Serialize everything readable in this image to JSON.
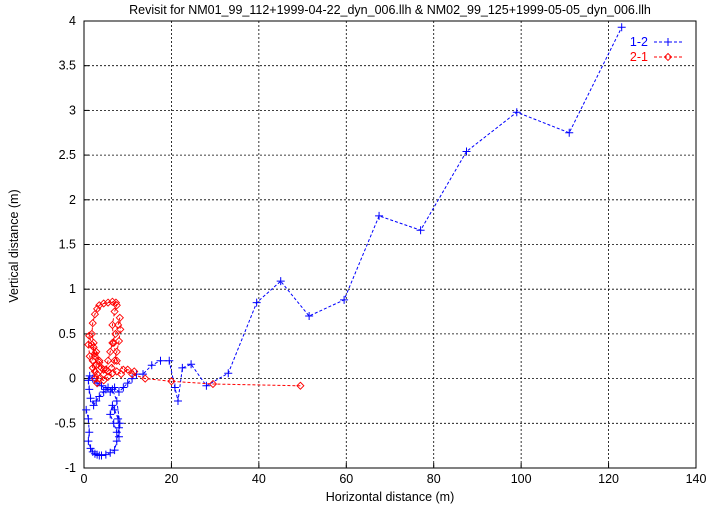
{
  "chart_data": {
    "type": "line",
    "title": "Revisit for NM01_99_112+1999-04-22_dyn_006.llh & NM02_99_125+1999-05-05_dyn_006.llh",
    "xlabel": "Horizontal distance (m)",
    "ylabel": "Vertical distance (m)",
    "xlim": [
      0,
      140
    ],
    "ylim": [
      -1,
      4
    ],
    "x_ticks": [
      0,
      20,
      40,
      60,
      80,
      100,
      120,
      140
    ],
    "x_tick_labels": [
      "0",
      "20",
      "40",
      "60",
      "80",
      "100",
      "120",
      "140"
    ],
    "y_ticks": [
      -1,
      -0.5,
      0,
      0.5,
      1,
      1.5,
      2,
      2.5,
      3,
      3.5,
      4
    ],
    "y_tick_labels": [
      "-1",
      "-0.5",
      "0",
      "0.5",
      "1",
      "1.5",
      "2",
      "2.5",
      "3",
      "3.5",
      "4"
    ],
    "grid": true,
    "legend_position": "top-right",
    "series": [
      {
        "name": "1-2",
        "color": "#0000ff",
        "marker": "plus",
        "x": [
          0.5,
          1.0,
          1.2,
          1.0,
          1.5,
          2.0,
          2.5,
          3.0,
          3.5,
          4.0,
          5.0,
          6.0,
          7.0,
          7.5,
          8.0,
          7.8,
          7.0,
          6.5,
          6.0,
          6.8,
          7.5,
          8.0,
          8.2,
          7.5,
          6.5,
          5.5,
          4.5,
          3.5,
          2.8,
          2.2,
          1.5,
          1.2,
          1.0,
          1.3,
          2.0,
          3.0,
          4.0,
          5.0,
          6.0,
          7.0,
          8.0,
          9.0,
          10.0,
          11.0,
          12.0,
          13.5,
          15.5,
          17.5,
          19.5,
          20.8,
          21.5,
          22.5,
          24.5,
          28.0,
          33.0,
          39.5,
          45.0,
          51.5,
          59.5,
          67.5,
          77.0,
          87.5,
          99.0,
          111.0,
          123.0
        ],
        "y": [
          -0.35,
          -0.45,
          -0.6,
          -0.7,
          -0.78,
          -0.82,
          -0.84,
          -0.85,
          -0.86,
          -0.86,
          -0.85,
          -0.83,
          -0.8,
          -0.7,
          -0.55,
          -0.45,
          -0.35,
          -0.3,
          -0.4,
          -0.5,
          -0.6,
          -0.65,
          -0.5,
          -0.25,
          -0.12,
          -0.1,
          -0.15,
          -0.2,
          -0.25,
          -0.3,
          -0.22,
          -0.12,
          -0.02,
          0.03,
          0.0,
          -0.05,
          -0.08,
          -0.12,
          -0.15,
          -0.1,
          -0.15,
          -0.1,
          -0.05,
          0.0,
          0.05,
          0.05,
          0.15,
          0.2,
          0.2,
          -0.1,
          -0.25,
          0.12,
          0.16,
          -0.08,
          0.06,
          0.85,
          1.09,
          0.7,
          0.88,
          1.82,
          1.66,
          2.54,
          2.98,
          2.75,
          3.93
        ]
      },
      {
        "name": "2-1",
        "color": "#ff0000",
        "marker": "diamond",
        "x": [
          49.5,
          29.5,
          20.0,
          14.0,
          11.0,
          9.0,
          7.5,
          6.8,
          6.5,
          7.0,
          7.5,
          7.3,
          6.5,
          5.5,
          4.5,
          3.5,
          3.0,
          2.5,
          2.0,
          1.8,
          2.2,
          2.8,
          3.5,
          4.0,
          4.5,
          5.0,
          5.5,
          6.0,
          6.5,
          7.2,
          7.8,
          8.2,
          8.3,
          8.0,
          7.5,
          7.0,
          6.3,
          5.5,
          4.5,
          3.5,
          2.5,
          1.8,
          1.2,
          1.0,
          1.3,
          2.0,
          2.5,
          3.0,
          3.0,
          2.8,
          2.5,
          2.2,
          2.0,
          2.5,
          3.5,
          4.5,
          5.5,
          6.5,
          7.5,
          8.5,
          10.0,
          11.5
        ],
        "y": [
          -0.08,
          -0.06,
          -0.03,
          0.0,
          0.05,
          0.1,
          0.2,
          0.4,
          0.6,
          0.75,
          0.82,
          0.85,
          0.86,
          0.85,
          0.84,
          0.82,
          0.78,
          0.72,
          0.62,
          0.5,
          0.4,
          0.3,
          0.2,
          0.12,
          0.05,
          0.1,
          0.2,
          0.3,
          0.4,
          0.5,
          0.6,
          0.68,
          0.55,
          0.42,
          0.3,
          0.2,
          0.12,
          0.08,
          0.1,
          0.18,
          0.28,
          0.38,
          0.48,
          0.38,
          0.25,
          0.12,
          0.0,
          -0.05,
          0.05,
          0.15,
          0.25,
          0.35,
          0.2,
          0.08,
          0.0,
          -0.02,
          0.02,
          0.06,
          0.08,
          0.05,
          0.1,
          0.08
        ]
      }
    ]
  }
}
